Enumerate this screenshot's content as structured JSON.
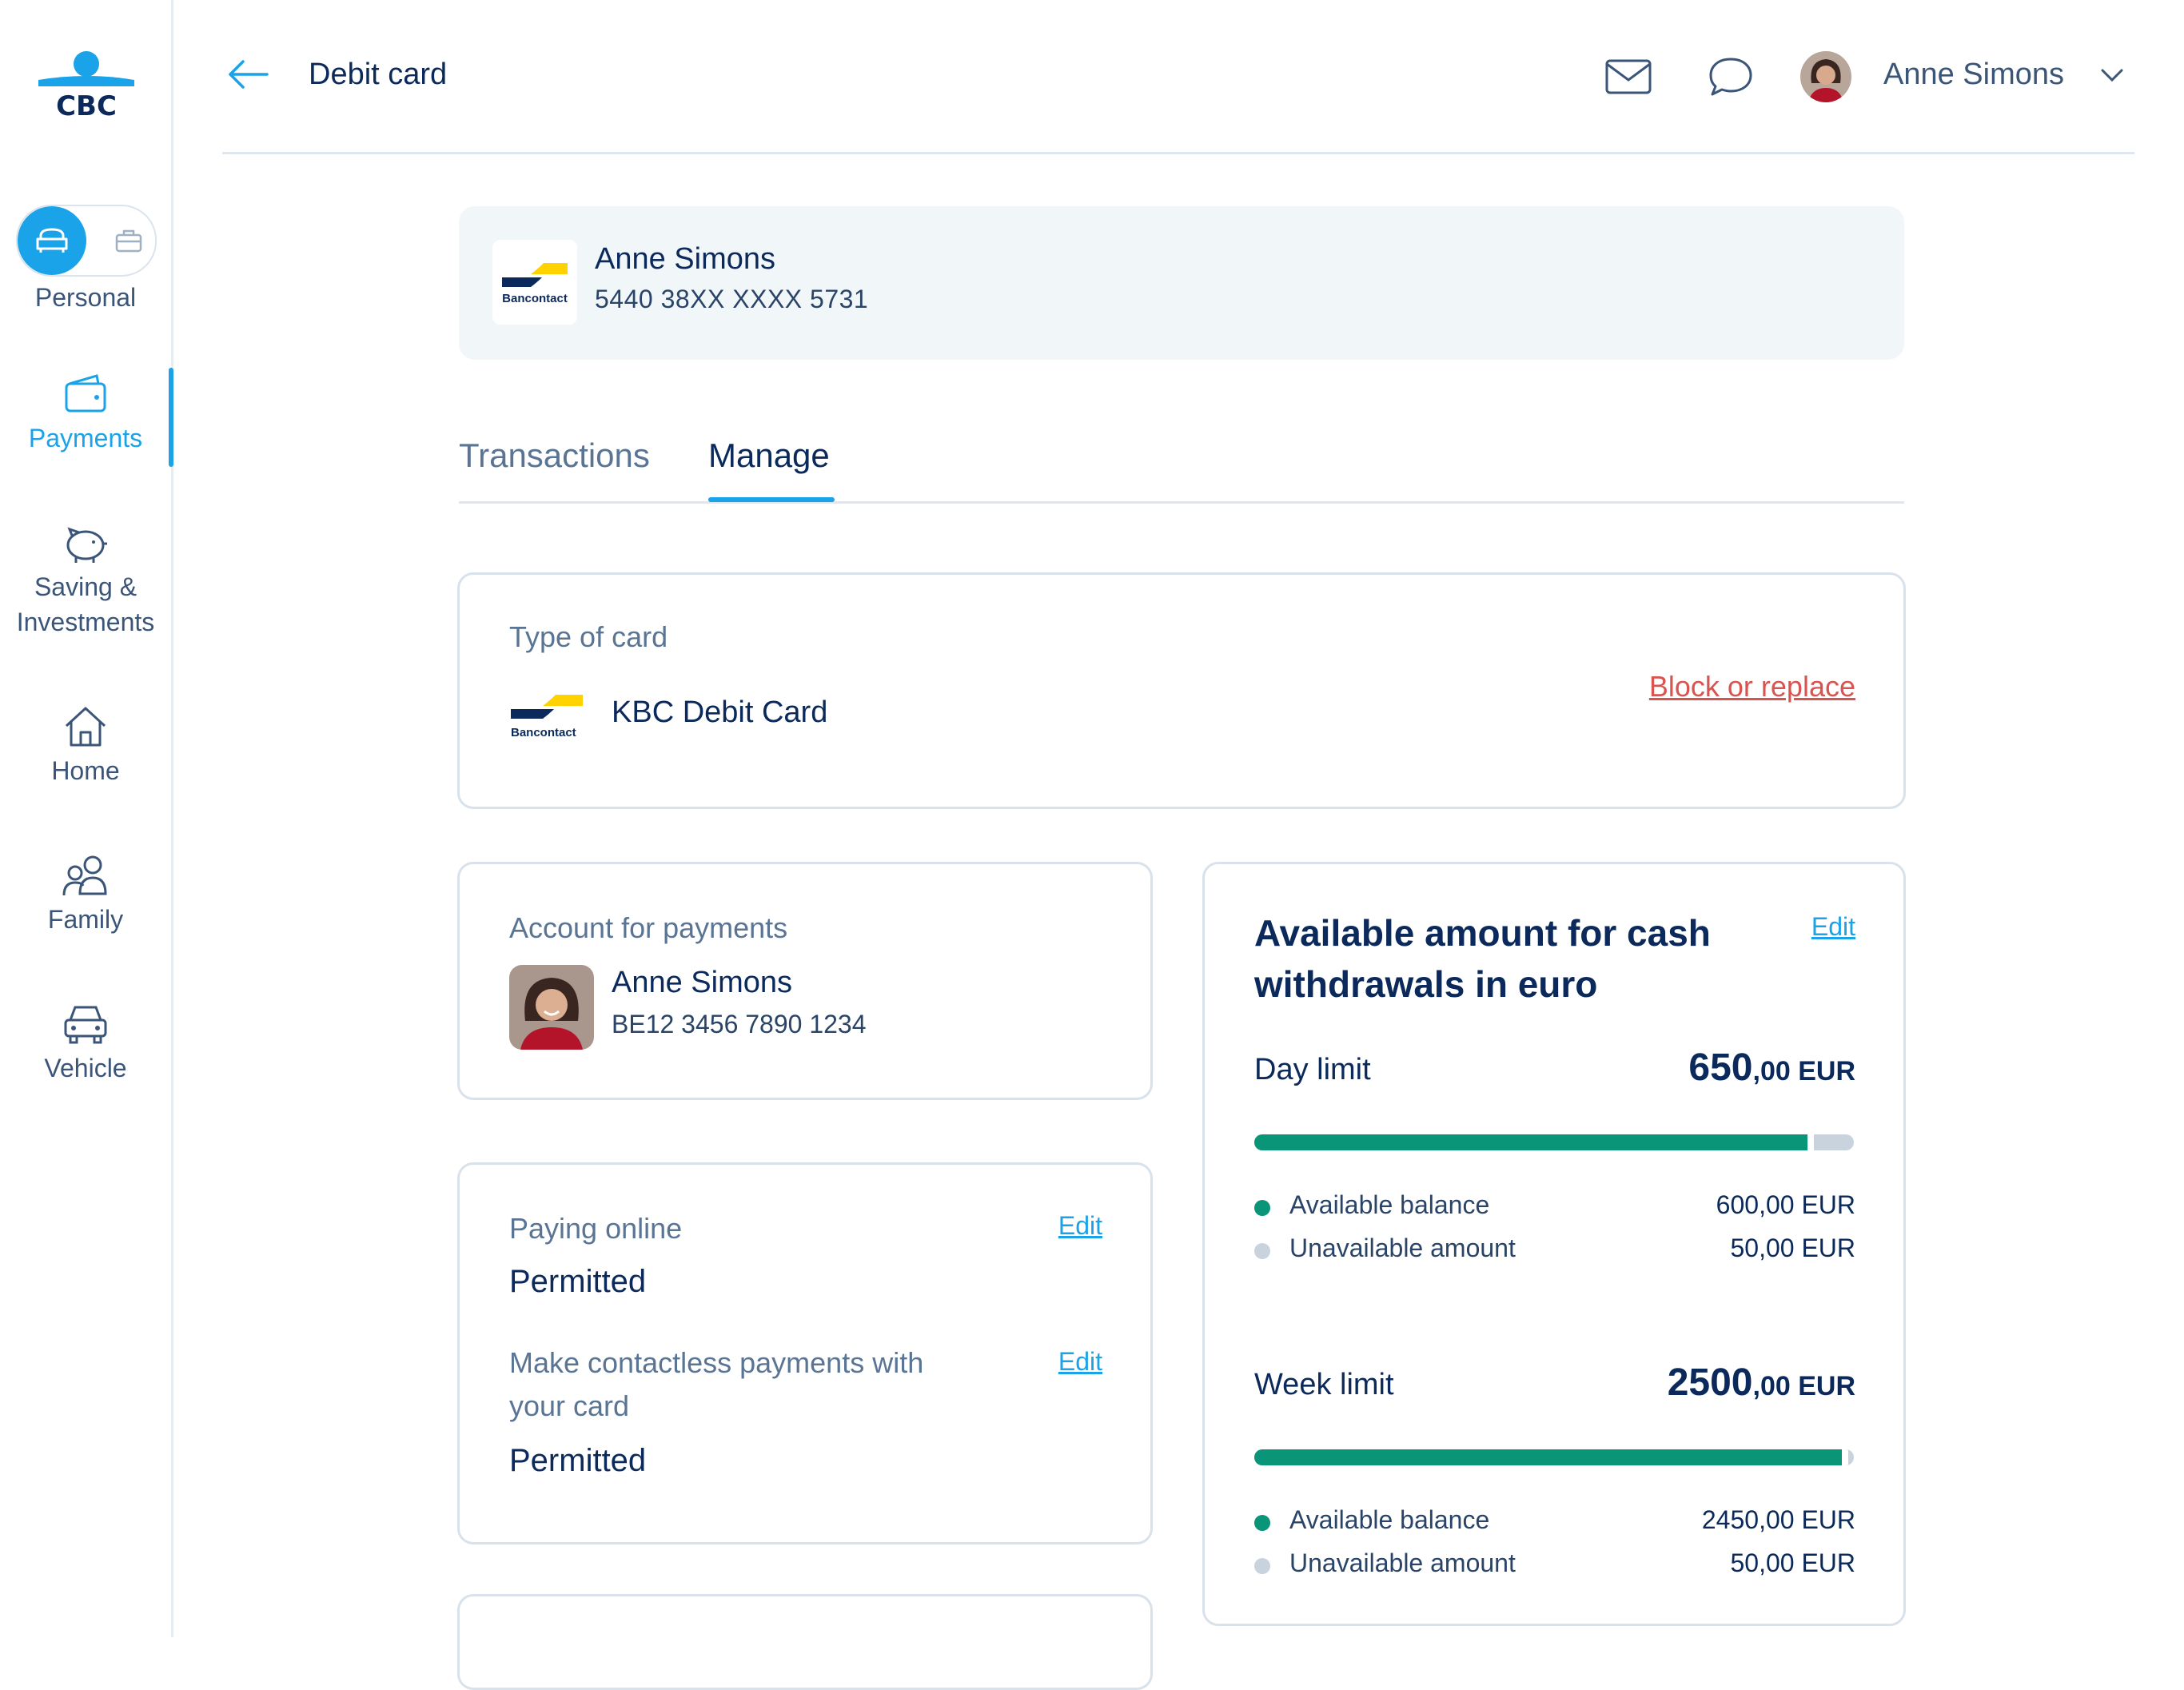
{
  "app": {
    "logo_text": "CBC",
    "accent_color": "#1aa3e8",
    "success_color": "#0a9478",
    "danger_color": "#d9534f"
  },
  "sidebar": {
    "mode_label": "Personal",
    "items": [
      {
        "label": "Payments",
        "icon": "wallet-icon",
        "active": true
      },
      {
        "label": "Saving &",
        "label2": "Investments",
        "icon": "piggy-bank-icon"
      },
      {
        "label": "Home",
        "icon": "house-icon"
      },
      {
        "label": "Family",
        "icon": "family-icon"
      },
      {
        "label": "Vehicle",
        "icon": "car-icon"
      }
    ]
  },
  "header": {
    "title": "Debit card",
    "user_name": "Anne Simons"
  },
  "card": {
    "holder": "Anne Simons",
    "number": "5440 38XX XXXX 5731",
    "brand": "Bancontact"
  },
  "tabs": [
    {
      "label": "Transactions",
      "active": false
    },
    {
      "label": "Manage",
      "active": true
    }
  ],
  "type_of_card": {
    "label": "Type of card",
    "value": "KBC Debit Card",
    "brand": "Bancontact",
    "action": "Block or replace"
  },
  "account": {
    "label": "Account for payments",
    "name": "Anne Simons",
    "iban": "BE12 3456 7890 1234"
  },
  "settings": {
    "online_label": "Paying online",
    "online_value": "Permitted",
    "contactless_label_1": "Make contactless payments with",
    "contactless_label_2": "your card",
    "contactless_value": "Permitted",
    "edit_label": "Edit"
  },
  "limits": {
    "title_1": "Available amount for cash",
    "title_2": "withdrawals in euro",
    "edit_label": "Edit",
    "day": {
      "name": "Day limit",
      "amount_int": "650",
      "amount_dec": ",00 EUR",
      "available_fraction": 0.923,
      "available_label": "Available balance",
      "available_value": "600,00 EUR",
      "unavailable_label": "Unavailable amount",
      "unavailable_value": "50,00 EUR"
    },
    "week": {
      "name": "Week limit",
      "amount_int": "2500",
      "amount_dec": ",00 EUR",
      "available_fraction": 0.98,
      "available_label": "Available balance",
      "available_value": "2450,00 EUR",
      "unavailable_label": "Unavailable amount",
      "unavailable_value": "50,00 EUR"
    }
  }
}
